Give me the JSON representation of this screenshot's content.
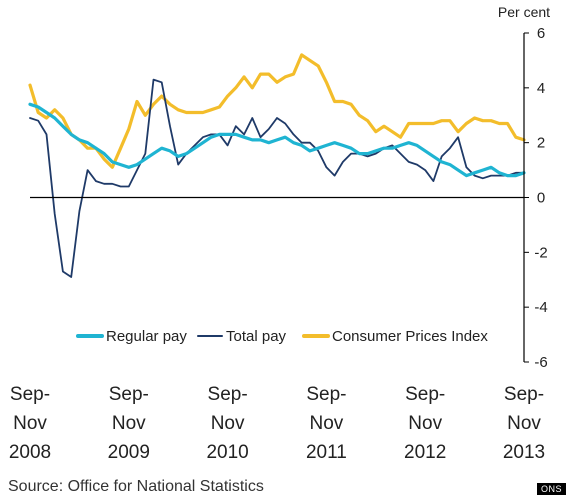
{
  "chart_data": {
    "type": "line",
    "unit_label": "Per cent",
    "ylim": [
      -6,
      6
    ],
    "yticks": [
      6,
      4,
      2,
      0,
      -2,
      -4,
      -6
    ],
    "x": [
      0,
      1,
      2,
      3,
      4,
      5,
      6,
      7,
      8,
      9,
      10,
      11,
      12,
      13,
      14,
      15,
      16,
      17,
      18,
      19,
      20,
      21,
      22,
      23,
      24,
      25,
      26,
      27,
      28,
      29,
      30,
      31,
      32,
      33,
      34,
      35,
      36,
      37,
      38,
      39,
      40,
      41,
      42,
      43,
      44,
      45,
      46,
      47,
      48,
      49,
      50,
      51,
      52,
      53,
      54,
      55,
      56,
      57,
      58,
      59,
      60
    ],
    "xlim": [
      0,
      60
    ],
    "xticks": [
      {
        "pos": 0,
        "lines": [
          "Sep-",
          "Nov",
          "2008"
        ]
      },
      {
        "pos": 12,
        "lines": [
          "Sep-",
          "Nov",
          "2009"
        ]
      },
      {
        "pos": 24,
        "lines": [
          "Sep-",
          "Nov",
          "2010"
        ]
      },
      {
        "pos": 36,
        "lines": [
          "Sep-",
          "Nov",
          "2011"
        ]
      },
      {
        "pos": 48,
        "lines": [
          "Sep-",
          "Nov",
          "2012"
        ]
      },
      {
        "pos": 60,
        "lines": [
          "Sep-",
          "Nov",
          "2013"
        ]
      }
    ],
    "grid": false,
    "legend_position": "bottom",
    "series": [
      {
        "name": "Regular pay",
        "color": "#1fb4d2",
        "values": [
          3.4,
          3.3,
          3.1,
          2.9,
          2.6,
          2.3,
          2.1,
          2.0,
          1.8,
          1.6,
          1.3,
          1.2,
          1.1,
          1.2,
          1.4,
          1.6,
          1.8,
          1.7,
          1.5,
          1.6,
          1.8,
          2.0,
          2.2,
          2.3,
          2.3,
          2.3,
          2.2,
          2.1,
          2.1,
          2.0,
          2.1,
          2.2,
          2.0,
          1.9,
          1.7,
          1.8,
          1.9,
          2.0,
          1.9,
          1.8,
          1.6,
          1.6,
          1.7,
          1.8,
          1.8,
          1.9,
          2.0,
          1.9,
          1.7,
          1.5,
          1.3,
          1.2,
          1.0,
          0.8,
          0.9,
          1.0,
          1.1,
          0.9,
          0.8,
          0.8,
          0.9
        ]
      },
      {
        "name": "Total pay",
        "color": "#1f3a68",
        "values": [
          2.9,
          2.8,
          2.3,
          -0.6,
          -2.7,
          -2.9,
          -0.5,
          1.0,
          0.6,
          0.5,
          0.5,
          0.4,
          0.4,
          1.0,
          1.6,
          4.3,
          4.2,
          2.6,
          1.2,
          1.6,
          1.9,
          2.2,
          2.3,
          2.3,
          1.9,
          2.6,
          2.3,
          2.9,
          2.2,
          2.5,
          2.9,
          2.7,
          2.3,
          2.0,
          2.0,
          1.7,
          1.1,
          0.8,
          1.3,
          1.6,
          1.6,
          1.5,
          1.6,
          1.8,
          1.9,
          1.6,
          1.3,
          1.2,
          1.0,
          0.6,
          1.5,
          1.8,
          2.2,
          1.1,
          0.8,
          0.7,
          0.8,
          0.8,
          0.8,
          0.9,
          0.9
        ]
      },
      {
        "name": "Consumer Prices Index",
        "color": "#f3bd2b",
        "values": [
          4.1,
          3.1,
          2.9,
          3.2,
          2.9,
          2.3,
          2.1,
          1.8,
          1.8,
          1.4,
          1.1,
          1.8,
          2.5,
          3.5,
          3.0,
          3.4,
          3.7,
          3.4,
          3.2,
          3.1,
          3.1,
          3.1,
          3.2,
          3.3,
          3.7,
          4.0,
          4.4,
          4.0,
          4.5,
          4.5,
          4.2,
          4.4,
          4.5,
          5.2,
          5.0,
          4.8,
          4.2,
          3.5,
          3.5,
          3.4,
          3.0,
          2.8,
          2.4,
          2.6,
          2.4,
          2.2,
          2.7,
          2.7,
          2.7,
          2.7,
          2.8,
          2.8,
          2.4,
          2.7,
          2.9,
          2.8,
          2.8,
          2.7,
          2.7,
          2.2,
          2.1
        ]
      }
    ]
  },
  "source": "Source: Office for National Statistics",
  "badge": "ONS"
}
